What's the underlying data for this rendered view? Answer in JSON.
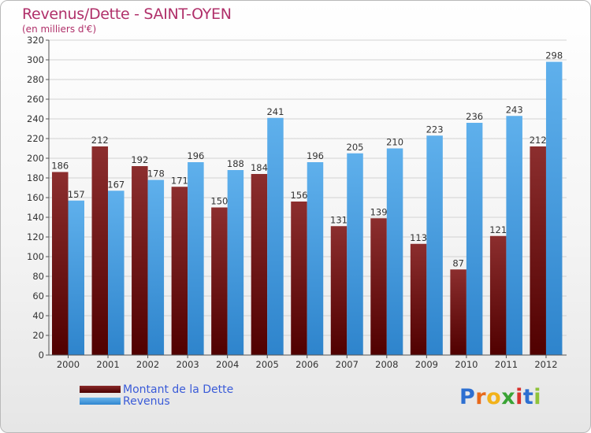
{
  "header": {
    "title": "Revenus/Dette - SAINT-OYEN",
    "subtitle": "(en milliers d'€)"
  },
  "colors": {
    "dette": "#6e1414",
    "revenus": "#4aa3e6",
    "title": "#b0306a",
    "legend_text": "#3a5bd8"
  },
  "legend": [
    {
      "label": "Montant de la Dette"
    },
    {
      "label": "Revenus"
    }
  ],
  "logo": {
    "text": "Proxiti",
    "letters": [
      "P",
      "r",
      "o",
      "x",
      "i",
      "t",
      "i"
    ],
    "letter_colors": [
      "#2d6fd1",
      "#e86a1a",
      "#f2b21a",
      "#3aa335",
      "#d8312c",
      "#2d6fd1",
      "#8fc33a"
    ]
  },
  "chart_data": {
    "type": "bar",
    "categories": [
      "2000",
      "2001",
      "2002",
      "2003",
      "2004",
      "2005",
      "2006",
      "2007",
      "2008",
      "2009",
      "2010",
      "2011",
      "2012"
    ],
    "series": [
      {
        "name": "Montant de la Dette",
        "values": [
          186,
          212,
          192,
          171,
          150,
          184,
          156,
          131,
          139,
          113,
          87,
          121,
          212
        ]
      },
      {
        "name": "Revenus",
        "values": [
          157,
          167,
          178,
          196,
          188,
          241,
          196,
          205,
          210,
          223,
          236,
          243,
          298
        ]
      }
    ],
    "ylim": [
      0,
      320
    ],
    "yticks": [
      0,
      20,
      40,
      60,
      80,
      100,
      120,
      140,
      160,
      180,
      200,
      220,
      240,
      260,
      280,
      300,
      320
    ],
    "grid": true,
    "legend_position": "bottom-left"
  }
}
